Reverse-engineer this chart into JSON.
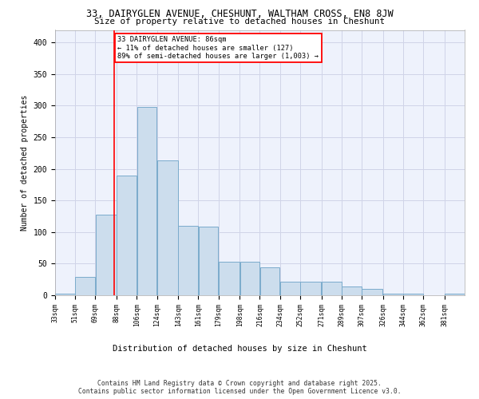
{
  "title_line1": "33, DAIRYGLEN AVENUE, CHESHUNT, WALTHAM CROSS, EN8 8JW",
  "title_line2": "Size of property relative to detached houses in Cheshunt",
  "xlabel": "Distribution of detached houses by size in Cheshunt",
  "ylabel": "Number of detached properties",
  "bar_color": "#ccdded",
  "bar_edge_color": "#7aabcc",
  "grid_color": "#d0d4e8",
  "background_color": "#eef2fc",
  "vline_x": 86,
  "vline_color": "red",
  "annotation_text": "33 DAIRYGLEN AVENUE: 86sqm\n← 11% of detached houses are smaller (127)\n89% of semi-detached houses are larger (1,003) →",
  "annotation_box_color": "white",
  "annotation_box_edge": "red",
  "footer_text": "Contains HM Land Registry data © Crown copyright and database right 2025.\nContains public sector information licensed under the Open Government Licence v3.0.",
  "bin_edges": [
    33,
    51,
    69,
    88,
    106,
    124,
    143,
    161,
    179,
    198,
    216,
    234,
    252,
    271,
    289,
    307,
    326,
    344,
    362,
    381,
    399
  ],
  "bar_heights": [
    3,
    29,
    127,
    190,
    298,
    213,
    110,
    109,
    53,
    53,
    44,
    21,
    21,
    21,
    14,
    10,
    3,
    3,
    0,
    3
  ],
  "ylim": [
    0,
    420
  ],
  "yticks": [
    0,
    50,
    100,
    150,
    200,
    250,
    300,
    350,
    400
  ]
}
